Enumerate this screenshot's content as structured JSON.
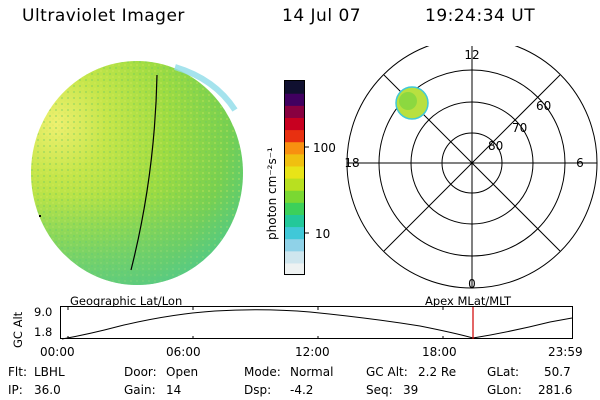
{
  "header": {
    "title": "Ultraviolet Imager",
    "date": "14 Jul 07",
    "time": "19:24:34 UT"
  },
  "colorbar": {
    "unit_label": "photon cm⁻²s⁻¹",
    "ticks": [
      "100",
      "10"
    ],
    "colors": [
      "#eef2f2",
      "#cfe6ee",
      "#8fd2e8",
      "#40c8d8",
      "#23c89a",
      "#3cd05a",
      "#7ad832",
      "#b8e020",
      "#e8e418",
      "#f0c010",
      "#f89010",
      "#e83010",
      "#c80020",
      "#880040",
      "#400060",
      "#101030"
    ]
  },
  "polar": {
    "mlt_labels": {
      "top": "12",
      "bottom": "0",
      "left": "18",
      "right": "6"
    },
    "lat_labels": [
      "80",
      "70",
      "60"
    ]
  },
  "timeline": {
    "left_title": "Geographic Lat/Lon",
    "right_title": "Apex MLat/MLT",
    "y_axis_label": "GC Alt",
    "y_max": "9.0",
    "y_min": "1.8",
    "x_ticks": [
      "00:00",
      "06:00",
      "12:00",
      "18:00",
      "23:59"
    ]
  },
  "info": {
    "flt_label": "Flt:",
    "flt_value": "LBHL",
    "ip_label": "IP:",
    "ip_value": "36.0",
    "door_label": "Door:",
    "door_value": "Open",
    "gain_label": "Gain:",
    "gain_value": "14",
    "mode_label": "Mode:",
    "mode_value": "Normal",
    "dsp_label": "Dsp:",
    "dsp_value": "-4.2",
    "gcalt_label": "GC Alt:",
    "gcalt_value": "2.2 Re",
    "seq_label": "Seq:",
    "seq_value": "39",
    "glat_label": "GLat:",
    "glat_value": "50.7",
    "glon_label": "GLon:",
    "glon_value": "281.6"
  }
}
